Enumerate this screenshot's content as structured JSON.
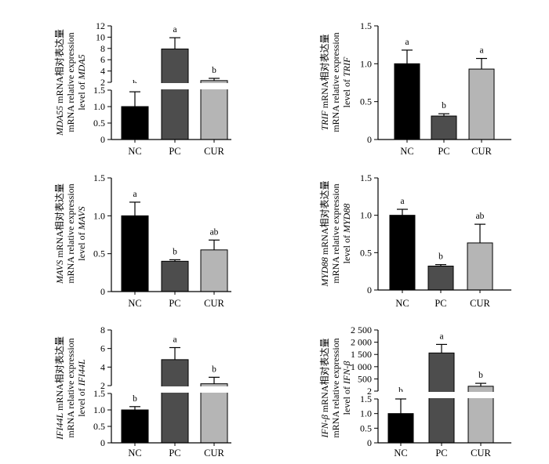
{
  "panels": [
    {
      "type": "bar",
      "ylabel_lines": [
        {
          "gene": "MDA55",
          "text": " mRNA相对表达量"
        },
        {
          "gene": "",
          "text": "mRNA relative expression"
        },
        {
          "gene": "",
          "text": "level of ",
          "gene2": "MDA5"
        }
      ],
      "categories": [
        "NC",
        "PC",
        "CUR"
      ],
      "values": [
        1.0,
        7.9,
        2.3
      ],
      "errors": [
        0.45,
        2.0,
        0.4
      ],
      "sig": [
        "b",
        "a",
        "b"
      ],
      "colors": [
        "#000000",
        "#4d4d4d",
        "#b5b5b5"
      ],
      "broken_axis": true,
      "lower_range": [
        0,
        1.5
      ],
      "lower_ticks": [
        "0",
        "0.5",
        "1.0",
        "1.5"
      ],
      "upper_range": [
        2,
        12
      ],
      "upper_ticks": [
        "2",
        "4",
        "6",
        "8",
        "10",
        "12"
      ]
    },
    {
      "type": "bar",
      "ylabel_lines": [
        {
          "gene": "TRIF",
          "text": " mRNA相对表达量"
        },
        {
          "gene": "",
          "text": "mRNA relative expression"
        },
        {
          "gene": "",
          "text": "level of ",
          "gene2": "TRIF"
        }
      ],
      "categories": [
        "NC",
        "PC",
        "CUR"
      ],
      "values": [
        1.0,
        0.31,
        0.93
      ],
      "errors": [
        0.18,
        0.03,
        0.14
      ],
      "sig": [
        "a",
        "b",
        "a"
      ],
      "colors": [
        "#000000",
        "#4d4d4d",
        "#b5b5b5"
      ],
      "broken_axis": false,
      "ylim": [
        0,
        1.5
      ],
      "ticks": [
        "0",
        "0.5",
        "1.0",
        "1.5"
      ]
    },
    {
      "type": "bar",
      "ylabel_lines": [
        {
          "gene": "MAVS",
          "text": " mRNA相对表达量"
        },
        {
          "gene": "",
          "text": "mRNA relative expression"
        },
        {
          "gene": "",
          "text": "level of ",
          "gene2": "MAVS"
        }
      ],
      "categories": [
        "NC",
        "PC",
        "CUR"
      ],
      "values": [
        1.0,
        0.4,
        0.55
      ],
      "errors": [
        0.18,
        0.02,
        0.13
      ],
      "sig": [
        "a",
        "b",
        "ab"
      ],
      "colors": [
        "#000000",
        "#4d4d4d",
        "#b5b5b5"
      ],
      "broken_axis": false,
      "ylim": [
        0,
        1.5
      ],
      "ticks": [
        "0",
        "0.5",
        "1.0",
        "1.5"
      ]
    },
    {
      "type": "bar",
      "ylabel_lines": [
        {
          "gene": "MYD88",
          "text": " mRNA相对表达量"
        },
        {
          "gene": "",
          "text": "mRNA relative expression"
        },
        {
          "gene": "",
          "text": "level of ",
          "gene2": "MYD88"
        }
      ],
      "categories": [
        "NC",
        "PC",
        "CUR"
      ],
      "values": [
        1.0,
        0.32,
        0.63
      ],
      "errors": [
        0.08,
        0.02,
        0.25
      ],
      "sig": [
        "a",
        "b",
        "ab"
      ],
      "colors": [
        "#000000",
        "#4d4d4d",
        "#b5b5b5"
      ],
      "broken_axis": false,
      "ylim": [
        0,
        1.5
      ],
      "ticks": [
        "0",
        "0.5",
        "1.0",
        "1.5"
      ]
    },
    {
      "type": "bar",
      "ylabel_lines": [
        {
          "gene": "IFI44L",
          "text": " mRNA相对表达量"
        },
        {
          "gene": "",
          "text": "mRNA relative expression"
        },
        {
          "gene": "",
          "text": "level of ",
          "gene2": "IFI44L"
        }
      ],
      "categories": [
        "NC",
        "PC",
        "CUR"
      ],
      "values": [
        1.0,
        4.8,
        2.2
      ],
      "errors": [
        0.1,
        1.3,
        0.7
      ],
      "sig": [
        "b",
        "a",
        "b"
      ],
      "colors": [
        "#000000",
        "#4d4d4d",
        "#b5b5b5"
      ],
      "broken_axis": true,
      "lower_range": [
        0,
        1.5
      ],
      "lower_ticks": [
        "0",
        "0.5",
        "1.0",
        "1.5"
      ],
      "upper_range": [
        2,
        8
      ],
      "upper_ticks": [
        "2",
        "4",
        "6",
        "8"
      ]
    },
    {
      "type": "bar",
      "ylabel_lines": [
        {
          "gene": "IFN-β",
          "text": " mRNA相对表达量"
        },
        {
          "gene": "",
          "text": "mRNA relative expression"
        },
        {
          "gene": "",
          "text": "level of ",
          "gene2": "IFN-β"
        }
      ],
      "categories": [
        "NC",
        "PC",
        "CUR"
      ],
      "values": [
        1.0,
        1560,
        200
      ],
      "errors": [
        0.5,
        350,
        120
      ],
      "sig": [
        "b",
        "a",
        "b"
      ],
      "colors": [
        "#000000",
        "#4d4d4d",
        "#b5b5b5"
      ],
      "broken_axis": true,
      "lower_range": [
        0,
        1.5
      ],
      "lower_ticks": [
        "0",
        "0.5",
        "1.0",
        "1.5"
      ],
      "upper_range": [
        2,
        2500
      ],
      "upper_ticks": [
        "2",
        "500",
        "1 000",
        "1 500",
        "2 000",
        "2 500"
      ],
      "upper_tick_values": [
        2,
        500,
        1000,
        1500,
        2000,
        2500
      ]
    }
  ],
  "chart_data": [
    {
      "type": "bar",
      "ylabel": "MDA55 mRNA相对表达量 mRNA relative expression level of MDA5",
      "categories": [
        "NC",
        "PC",
        "CUR"
      ],
      "values": [
        1.0,
        7.9,
        2.3
      ],
      "errors": [
        0.45,
        2.0,
        0.4
      ],
      "annotations": [
        "b",
        "a",
        "b"
      ],
      "ylim": [
        0,
        12
      ],
      "axis_break": [
        1.5,
        2
      ]
    },
    {
      "type": "bar",
      "ylabel": "TRIF mRNA相对表达量 mRNA relative expression level of TRIF",
      "categories": [
        "NC",
        "PC",
        "CUR"
      ],
      "values": [
        1.0,
        0.31,
        0.93
      ],
      "errors": [
        0.18,
        0.03,
        0.14
      ],
      "annotations": [
        "a",
        "b",
        "a"
      ],
      "ylim": [
        0,
        1.5
      ]
    },
    {
      "type": "bar",
      "ylabel": "MAVS mRNA相对表达量 mRNA relative expression level of MAVS",
      "categories": [
        "NC",
        "PC",
        "CUR"
      ],
      "values": [
        1.0,
        0.4,
        0.55
      ],
      "errors": [
        0.18,
        0.02,
        0.13
      ],
      "annotations": [
        "a",
        "b",
        "ab"
      ],
      "ylim": [
        0,
        1.5
      ]
    },
    {
      "type": "bar",
      "ylabel": "MYD88 mRNA相对表达量 mRNA relative expression level of MYD88",
      "categories": [
        "NC",
        "PC",
        "CUR"
      ],
      "values": [
        1.0,
        0.32,
        0.63
      ],
      "errors": [
        0.08,
        0.02,
        0.25
      ],
      "annotations": [
        "a",
        "b",
        "ab"
      ],
      "ylim": [
        0,
        1.5
      ]
    },
    {
      "type": "bar",
      "ylabel": "IFI44L mRNA相对表达量 mRNA relative expression level of IFI44L",
      "categories": [
        "NC",
        "PC",
        "CUR"
      ],
      "values": [
        1.0,
        4.8,
        2.2
      ],
      "errors": [
        0.1,
        1.3,
        0.7
      ],
      "annotations": [
        "b",
        "a",
        "b"
      ],
      "ylim": [
        0,
        8
      ],
      "axis_break": [
        1.5,
        2
      ]
    },
    {
      "type": "bar",
      "ylabel": "IFN-β mRNA相对表达量 mRNA relative expression level of IFN-β",
      "categories": [
        "NC",
        "PC",
        "CUR"
      ],
      "values": [
        1.0,
        1560,
        200
      ],
      "errors": [
        0.5,
        350,
        120
      ],
      "annotations": [
        "b",
        "a",
        "b"
      ],
      "ylim": [
        0,
        2500
      ],
      "axis_break": [
        1.5,
        2
      ]
    }
  ]
}
